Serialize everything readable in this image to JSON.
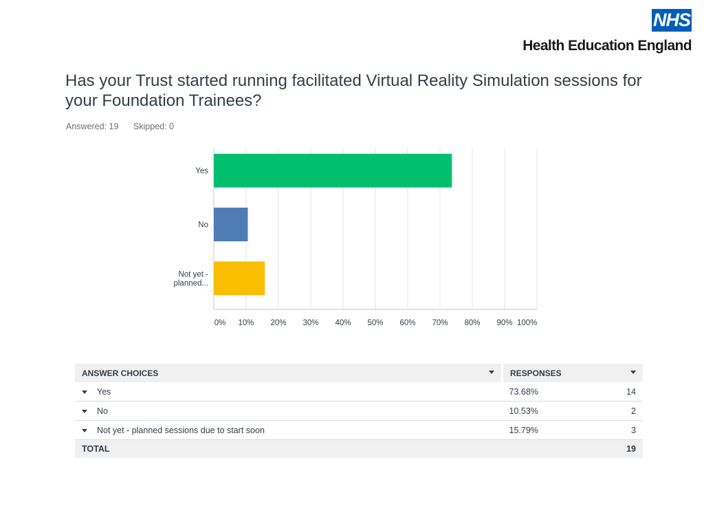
{
  "logo": {
    "mark": "NHS",
    "org": "Health Education England",
    "color": "#005eb8"
  },
  "question": "Has your Trust started running facilitated Virtual Reality Simulation sessions for your Foundation Trainees?",
  "meta": {
    "answered": "Answered: 19",
    "skipped": "Skipped: 0"
  },
  "chart_data": {
    "type": "bar",
    "orientation": "horizontal",
    "categories": [
      "Yes",
      "No",
      "Not yet - planned..."
    ],
    "category_lines": [
      [
        "Yes"
      ],
      [
        "No"
      ],
      [
        "Not yet -",
        "planned..."
      ]
    ],
    "values": [
      73.68,
      10.53,
      15.79
    ],
    "colors": [
      "#00bf6f",
      "#507cb6",
      "#f9be00"
    ],
    "xlim": [
      0,
      100
    ],
    "xticks": [
      0,
      10,
      20,
      30,
      40,
      50,
      60,
      70,
      80,
      90,
      100
    ],
    "xtick_labels": [
      "0%",
      "10%",
      "20%",
      "30%",
      "40%",
      "50%",
      "60%",
      "70%",
      "80%",
      "90%",
      "100%"
    ],
    "grid": true
  },
  "table": {
    "headers": {
      "choices": "ANSWER CHOICES",
      "responses": "RESPONSES"
    },
    "rows": [
      {
        "choice": "Yes",
        "percent": "73.68%",
        "count": "14"
      },
      {
        "choice": "No",
        "percent": "10.53%",
        "count": "2"
      },
      {
        "choice": "Not yet - planned sessions due to start soon",
        "percent": "15.79%",
        "count": "3"
      }
    ],
    "total": {
      "label": "TOTAL",
      "count": "19"
    }
  }
}
